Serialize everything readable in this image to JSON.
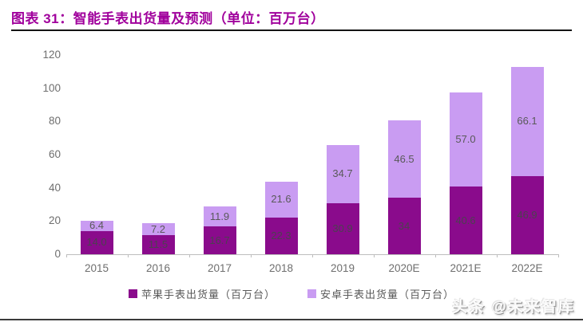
{
  "title": "图表 31：智能手表出货量及预测（单位：百万台）",
  "watermark": "头条 @未来智库",
  "colors": {
    "title": "#A0009C",
    "apple_bar": "#8A0B8C",
    "android_bar": "#C99CF2",
    "label_on_dark": "#4d4050",
    "label_on_light": "#595959",
    "axis_text": "#6e6e6e",
    "axis_line": "#bdbdbd"
  },
  "chart_data": {
    "type": "bar",
    "stacked": true,
    "title": "智能手表出货量及预测",
    "unit": "百万台",
    "categories": [
      "2015",
      "2016",
      "2017",
      "2018",
      "2019",
      "2020E",
      "2021E",
      "2022E"
    ],
    "series": [
      {
        "name": "苹果手表出货量（百万台）",
        "color_key": "apple_bar",
        "values": [
          14.0,
          11.5,
          16.7,
          22.3,
          30.9,
          34,
          40.6,
          46.9
        ],
        "labels": [
          "14.0",
          "11.5",
          "16.7",
          "22.3",
          "30.9",
          "34",
          "40.6",
          "46.9"
        ]
      },
      {
        "name": "安卓手表出货量（百万台）",
        "color_key": "android_bar",
        "values": [
          6.4,
          7.2,
          11.9,
          21.6,
          34.7,
          46.5,
          57.0,
          66.1
        ],
        "labels": [
          "6.4",
          "7.2",
          "11.9",
          "21.6",
          "34.7",
          "46.5",
          "57.0",
          "66.1"
        ]
      }
    ],
    "ylim": [
      0,
      120
    ],
    "yticks": [
      0,
      20,
      40,
      60,
      80,
      100,
      120
    ],
    "grid": false,
    "legend_position": "bottom"
  }
}
